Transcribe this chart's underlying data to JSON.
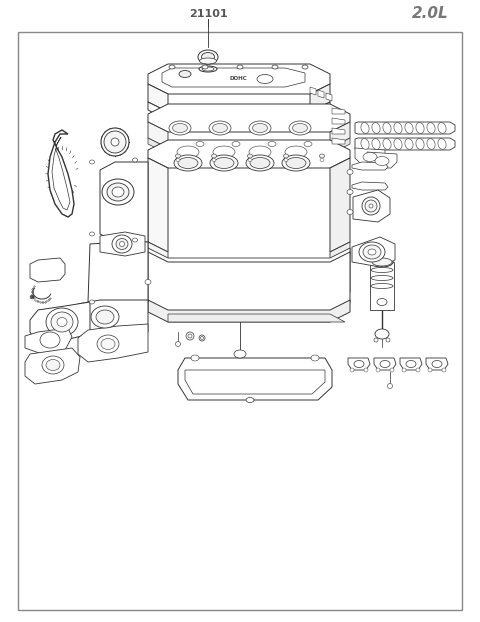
{
  "title_label": "21101",
  "title_label2": "2.0L",
  "bg_color": "#ffffff",
  "border_color": "#555555",
  "text_color": "#555555",
  "fig_width": 4.8,
  "fig_height": 6.22,
  "dpi": 100,
  "line_color": "#333333",
  "line_width": 0.6
}
